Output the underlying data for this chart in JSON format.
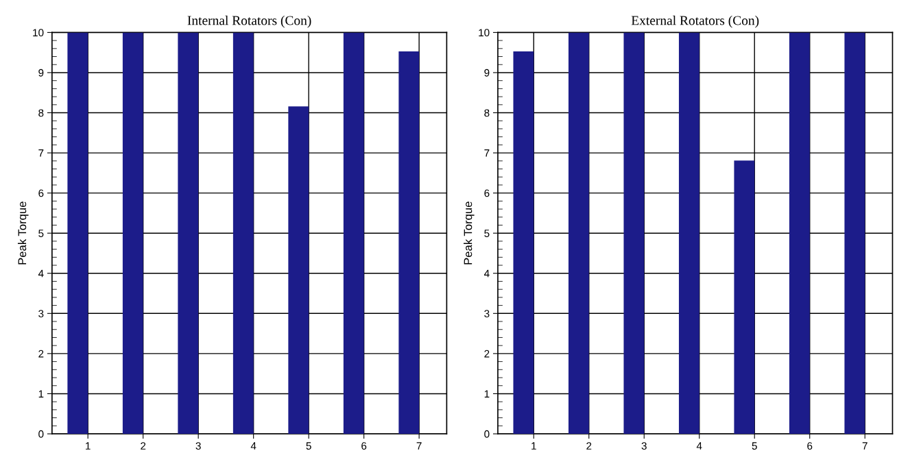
{
  "chart_data": [
    {
      "type": "bar",
      "title": "Internal Rotators (Con)",
      "ylabel": "Peak Torque",
      "categories": [
        "1",
        "2",
        "3",
        "4",
        "5",
        "6",
        "7"
      ],
      "values": [
        10,
        10,
        10,
        10,
        8.16,
        10,
        9.53
      ],
      "color": "#1c1c8a",
      "ylim": [
        0,
        10
      ],
      "yticks": [
        0,
        1,
        2,
        3,
        4,
        5,
        6,
        7,
        8,
        9,
        10
      ],
      "grid": true
    },
    {
      "type": "bar",
      "title": "External Rotators (Con)",
      "ylabel": "Peak Torque",
      "categories": [
        "1",
        "2",
        "3",
        "4",
        "5",
        "6",
        "7"
      ],
      "values": [
        9.53,
        10,
        10,
        10,
        6.81,
        10,
        10
      ],
      "color": "#1c1c8a",
      "ylim": [
        0,
        10
      ],
      "yticks": [
        0,
        1,
        2,
        3,
        4,
        5,
        6,
        7,
        8,
        9,
        10
      ],
      "grid": true
    }
  ]
}
